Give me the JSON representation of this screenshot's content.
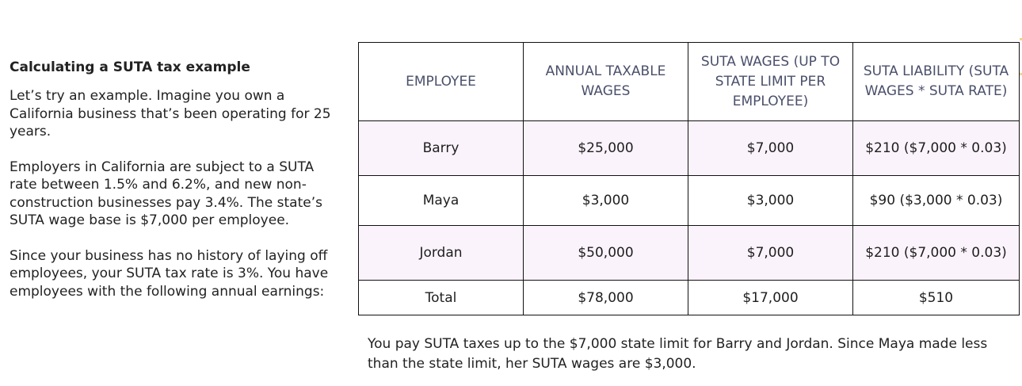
{
  "heading": "Calculating a SUTA tax example",
  "paragraphs": [
    "Let’s try an example. Imagine you own a California business that’s been operating for 25 years.",
    "Employers in California are subject to a SUTA rate between 1.5% and 6.2%, and new non-construction businesses pay 3.4%. The state’s SUTA wage base is $7,000 per employee.",
    "Since your business has no history of laying off employees, your SUTA tax rate is 3%. You have employees with the following annual earnings:"
  ],
  "table": {
    "headers": [
      "EMPLOYEE",
      "ANNUAL TAXABLE WAGES",
      "SUTA WAGES (UP TO STATE LIMIT PER EMPLOYEE)",
      "SUTA LIABILITY (SUTA WAGES * SUTA RATE)"
    ],
    "rows": [
      [
        "Barry",
        "$25,000",
        "$7,000",
        "$210 ($7,000 * 0.03)"
      ],
      [
        "Maya",
        "$3,000",
        "$3,000",
        "$90 ($3,000 * 0.03)"
      ],
      [
        "Jordan",
        "$50,000",
        "$7,000",
        "$210 ($7,000 * 0.03)"
      ],
      [
        "Total",
        "$78,000",
        "$17,000",
        "$510"
      ]
    ]
  },
  "footnote": "You pay SUTA taxes up to the $7,000 state limit for Barry and Jordan. Since Maya made less than the state limit, her SUTA wages are $3,000.",
  "colors": {
    "header_text": "#4a4f6a",
    "row_shade": "#fbf3fb",
    "border": "#111111"
  }
}
